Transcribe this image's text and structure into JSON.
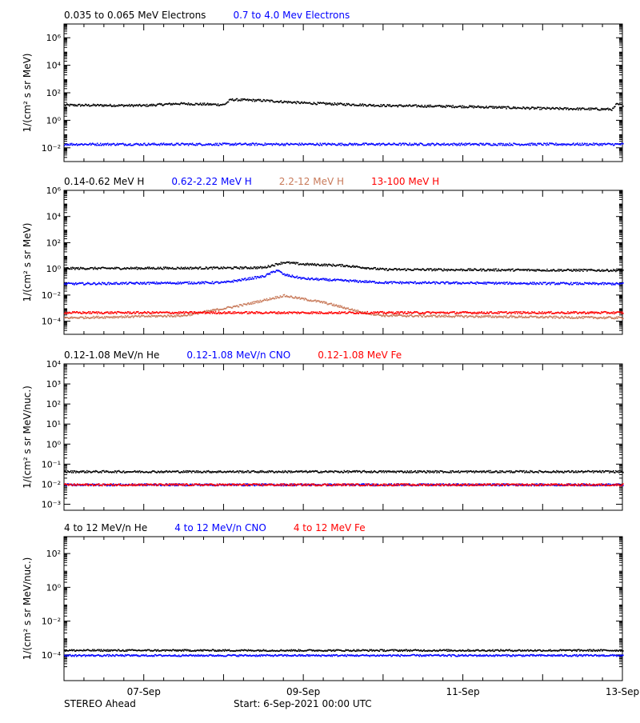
{
  "footer": {
    "spacecraft": "STEREO Ahead",
    "start": "Start:  6-Sep-2021 00:00 UTC"
  },
  "colors": {
    "black": "#000000",
    "blue": "#0000ff",
    "tan": "#c87a5a",
    "red": "#ff0000"
  },
  "x_axis": {
    "start": "2021-09-06",
    "end": "2021-09-13",
    "tick_labels": [
      "07-Sep",
      "09-Sep",
      "11-Sep",
      "13-Sep"
    ],
    "tick_dates": [
      "2021-09-07",
      "2021-09-09",
      "2021-09-11",
      "2021-09-13"
    ]
  },
  "chart_data": [
    {
      "type": "scatter",
      "ylabel": "1/(cm² s sr MeV)",
      "yscale": "log",
      "ylim": [
        0.001,
        10000000
      ],
      "yticks": [
        {
          "value": 0.01,
          "label": "10⁻²"
        },
        {
          "value": 1,
          "label": "10⁰"
        },
        {
          "value": 100,
          "label": "10²"
        },
        {
          "value": 10000,
          "label": "10⁴"
        },
        {
          "value": 1000000,
          "label": "10⁶"
        }
      ],
      "legend": [
        {
          "text": "0.035 to 0.065 MeV Electrons",
          "color": "#000000"
        },
        {
          "text": "0.7 to 4.0 Mev Electrons",
          "color": "#0000ff"
        }
      ],
      "series": [
        {
          "name": "0.035 to 0.065 MeV Electrons",
          "color": "#000000",
          "points": [
            [
              "2021-09-06",
              14
            ],
            [
              "2021-09-07",
              13
            ],
            [
              "2021-09-07T10:00",
              18
            ],
            [
              "2021-09-08",
              15
            ],
            [
              "2021-09-08T02:00",
              35
            ],
            [
              "2021-09-08T12:00",
              30
            ],
            [
              "2021-09-09",
              20
            ],
            [
              "2021-09-10",
              13
            ],
            [
              "2021-09-11",
              11
            ],
            [
              "2021-09-12",
              8
            ],
            [
              "2021-09-12T21:00",
              7
            ],
            [
              "2021-09-12T22:00",
              16
            ],
            [
              "2021-09-13",
              14
            ]
          ]
        },
        {
          "name": "0.7 to 4.0 Mev Electrons",
          "color": "#0000ff",
          "points": [
            [
              "2021-09-06",
              0.02
            ],
            [
              "2021-09-08",
              0.02
            ],
            [
              "2021-09-10",
              0.02
            ],
            [
              "2021-09-13",
              0.02
            ]
          ]
        }
      ]
    },
    {
      "type": "scatter",
      "ylabel": "1/(cm² s sr MeV)",
      "yscale": "log",
      "ylim": [
        1e-05,
        1000000
      ],
      "yticks": [
        {
          "value": 0.0001,
          "label": "10⁻⁴"
        },
        {
          "value": 0.01,
          "label": "10⁻²"
        },
        {
          "value": 1,
          "label": "10⁰"
        },
        {
          "value": 100,
          "label": "10²"
        },
        {
          "value": 10000,
          "label": "10⁴"
        },
        {
          "value": 1000000,
          "label": "10⁶"
        }
      ],
      "legend": [
        {
          "text": "0.14-0.62 MeV H",
          "color": "#000000"
        },
        {
          "text": "0.62-2.22 MeV H",
          "color": "#0000ff"
        },
        {
          "text": "2.2-12 MeV H",
          "color": "#c87a5a"
        },
        {
          "text": "13-100 MeV H",
          "color": "#ff0000"
        }
      ],
      "series": [
        {
          "name": "0.14-0.62 MeV H",
          "color": "#000000",
          "points": [
            [
              "2021-09-06",
              1.2
            ],
            [
              "2021-09-08",
              1.3
            ],
            [
              "2021-09-08T12:00",
              1.4
            ],
            [
              "2021-09-08T18:00",
              3.5
            ],
            [
              "2021-09-09",
              2.5
            ],
            [
              "2021-09-09T12:00",
              2.0
            ],
            [
              "2021-09-10",
              1.0
            ],
            [
              "2021-09-13",
              0.85
            ]
          ]
        },
        {
          "name": "0.62-2.22 MeV H",
          "color": "#0000ff",
          "points": [
            [
              "2021-09-06",
              0.08
            ],
            [
              "2021-09-08",
              0.1
            ],
            [
              "2021-09-08T12:00",
              0.3
            ],
            [
              "2021-09-08T16:00",
              0.9
            ],
            [
              "2021-09-08T18:00",
              0.4
            ],
            [
              "2021-09-09",
              0.2
            ],
            [
              "2021-09-10",
              0.1
            ],
            [
              "2021-09-13",
              0.08
            ]
          ]
        },
        {
          "name": "2.2-12 MeV H",
          "color": "#c87a5a",
          "points": [
            [
              "2021-09-06",
              0.0002
            ],
            [
              "2021-09-07T12:00",
              0.0003
            ],
            [
              "2021-09-08T06:00",
              0.002
            ],
            [
              "2021-09-08T18:00",
              0.01
            ],
            [
              "2021-09-09T06:00",
              0.003
            ],
            [
              "2021-09-09T18:00",
              0.0005
            ],
            [
              "2021-09-10",
              0.0003
            ],
            [
              "2021-09-13",
              0.0002
            ]
          ]
        },
        {
          "name": "13-100 MeV H",
          "color": "#ff0000",
          "points": [
            [
              "2021-09-06",
              0.0005
            ],
            [
              "2021-09-13",
              0.0005
            ]
          ]
        }
      ]
    },
    {
      "type": "scatter",
      "ylabel": "1/(cm² s sr MeV/nuc.)",
      "yscale": "log",
      "ylim": [
        0.0005,
        10000
      ],
      "yticks": [
        {
          "value": 0.001,
          "label": "10⁻³"
        },
        {
          "value": 0.01,
          "label": "10⁻²"
        },
        {
          "value": 0.1,
          "label": "10⁻¹"
        },
        {
          "value": 1,
          "label": "10⁰"
        },
        {
          "value": 10,
          "label": "10¹"
        },
        {
          "value": 100,
          "label": "10²"
        },
        {
          "value": 1000,
          "label": "10³"
        },
        {
          "value": 10000,
          "label": "10⁴"
        }
      ],
      "legend": [
        {
          "text": "0.12-1.08 MeV/n He",
          "color": "#000000"
        },
        {
          "text": "0.12-1.08 MeV/n CNO",
          "color": "#0000ff"
        },
        {
          "text": "0.12-1.08 MeV Fe",
          "color": "#ff0000"
        }
      ],
      "series": [
        {
          "name": "0.12-1.08 MeV/n He",
          "color": "#000000",
          "points": [
            [
              "2021-09-06",
              0.045
            ],
            [
              "2021-09-13",
              0.045
            ]
          ]
        },
        {
          "name": "0.12-1.08 MeV/n CNO",
          "color": "#0000ff",
          "points": [
            [
              "2021-09-06",
              0.01
            ],
            [
              "2021-09-13",
              0.01
            ]
          ]
        },
        {
          "name": "0.12-1.08 MeV Fe",
          "color": "#ff0000",
          "points": [
            [
              "2021-09-06",
              0.01
            ],
            [
              "2021-09-13",
              0.01
            ]
          ]
        }
      ]
    },
    {
      "type": "scatter",
      "ylabel": "1/(cm² s sr MeV/nuc.)",
      "yscale": "log",
      "ylim": [
        3e-06,
        1000
      ],
      "yticks": [
        {
          "value": 0.0001,
          "label": "10⁻⁴"
        },
        {
          "value": 0.01,
          "label": "10⁻²"
        },
        {
          "value": 1,
          "label": "10⁰"
        },
        {
          "value": 100,
          "label": "10²"
        }
      ],
      "legend": [
        {
          "text": "4 to 12 MeV/n He",
          "color": "#000000"
        },
        {
          "text": "4 to 12 MeV/n CNO",
          "color": "#0000ff"
        },
        {
          "text": "4 to 12 MeV Fe",
          "color": "#ff0000"
        }
      ],
      "series": [
        {
          "name": "4 to 12 MeV/n He",
          "color": "#000000",
          "points": [
            [
              "2021-09-06",
              0.0002
            ],
            [
              "2021-09-13",
              0.0002
            ]
          ]
        },
        {
          "name": "4 to 12 MeV/n CNO",
          "color": "#0000ff",
          "points": [
            [
              "2021-09-06",
              0.0001
            ],
            [
              "2021-09-13",
              0.0001
            ]
          ]
        },
        {
          "name": "4 to 12 MeV Fe",
          "color": "#ff0000",
          "points": []
        }
      ]
    }
  ]
}
